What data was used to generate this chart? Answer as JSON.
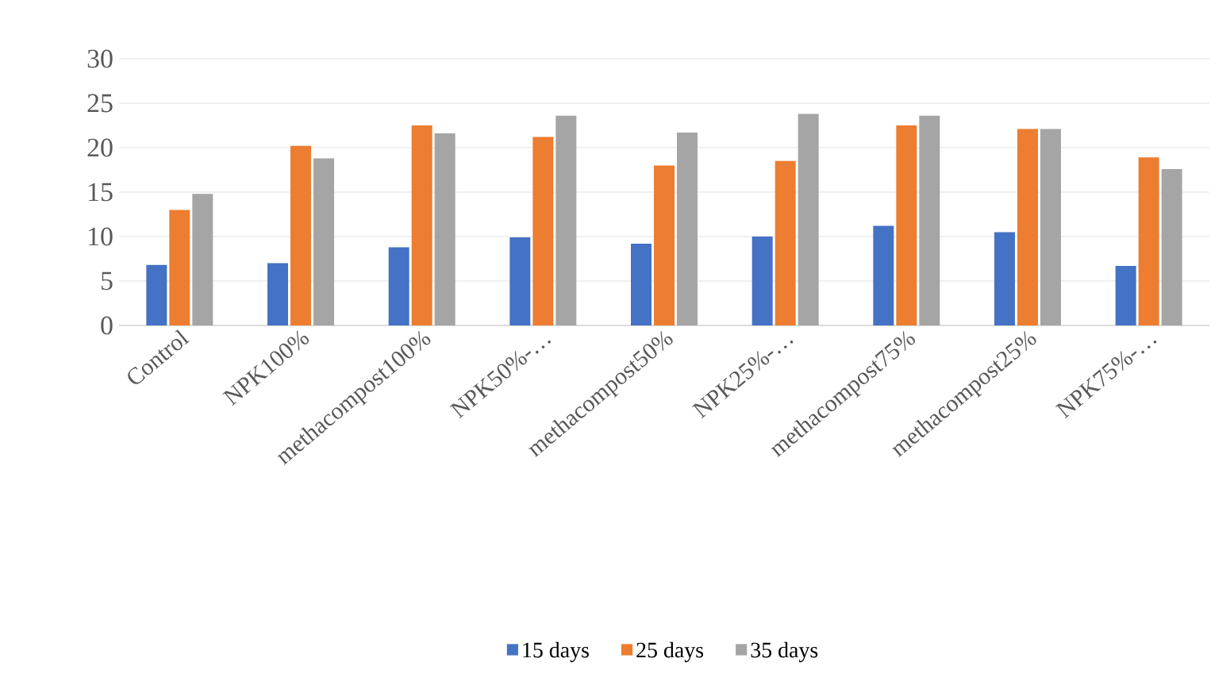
{
  "chart_data": {
    "type": "bar",
    "categories": [
      "Control",
      "NPK100%",
      "methacompost100%",
      "NPK50%-…",
      "methacompost50%",
      "NPK25%-…",
      "methacompost75%",
      "methacompost25%",
      "NPK75%-…"
    ],
    "series": [
      {
        "name": "15 days",
        "color": "#4472c4",
        "values": [
          6.8,
          7.0,
          8.8,
          9.9,
          9.2,
          10.0,
          11.2,
          10.5,
          6.7
        ]
      },
      {
        "name": "25 days",
        "color": "#ed7d31",
        "values": [
          13.0,
          20.2,
          22.5,
          21.2,
          18.0,
          18.5,
          22.5,
          22.1,
          18.9
        ]
      },
      {
        "name": "35 days",
        "color": "#a5a5a5",
        "values": [
          14.8,
          18.8,
          21.6,
          23.6,
          21.7,
          23.8,
          23.6,
          22.1,
          17.6
        ]
      }
    ],
    "ylim": [
      0,
      30
    ],
    "yticks": [
      0,
      5,
      10,
      15,
      20,
      25,
      30
    ],
    "grid": "y",
    "legend": "bottom"
  }
}
